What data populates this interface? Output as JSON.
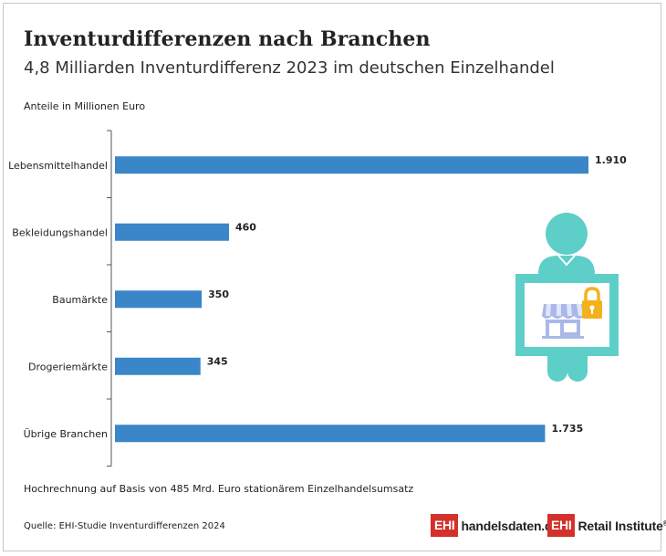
{
  "title": "Inventurdifferenzen nach Branchen",
  "subtitle": "4,8 Milliarden Inventurdifferenz 2023 im deutschen Einzelhandel",
  "unit_label": "Anteile in Millionen Euro",
  "footnote": "Hochrechnung auf Basis von 485 Mrd. Euro stationärem Einzelhandelsumsatz",
  "source": "Quelle: EHI-Studie Inventurdifferenzen 2024",
  "logos": {
    "handelsdaten": {
      "mark": "EHI",
      "text": "handelsdaten.de"
    },
    "retail_institute": {
      "mark": "EHI",
      "text": "Retail Institute",
      "reg": "®"
    }
  },
  "colors": {
    "bar": "#3a86c8",
    "icon_teal": "#5ecec8",
    "icon_store": "#a9b8e8",
    "icon_lock": "#f2b21c"
  },
  "illustration": {
    "icon": "person-holding-store-lock-sign-icon"
  },
  "chart_data": {
    "type": "bar",
    "orientation": "horizontal",
    "categories": [
      "Lebensmittelhandel",
      "Bekleidungshandel",
      "Baumärkte",
      "Drogeriemärkte",
      "Übrige Branchen"
    ],
    "values": [
      1910,
      460,
      350,
      345,
      1735
    ],
    "value_labels": [
      "1.910",
      "460",
      "350",
      "345",
      "1.735"
    ],
    "xlim": [
      0,
      1910
    ],
    "grid": false
  }
}
